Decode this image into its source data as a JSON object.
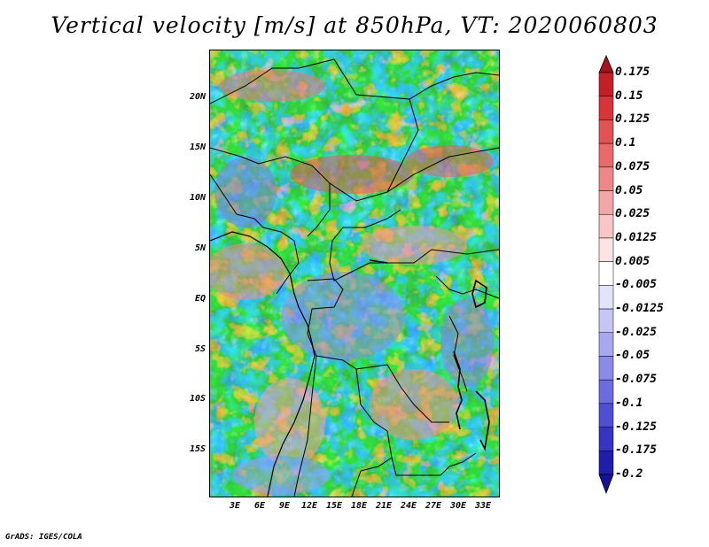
{
  "title": "Vertical velocity [m/s] at 850hPa, VT: 2020060803",
  "footer": "GrADS: IGES/COLA",
  "map": {
    "lat_range": [
      -20,
      24
    ],
    "lon_range": [
      0,
      35
    ],
    "lat_ticks": [
      {
        "value": 20,
        "label": "20N"
      },
      {
        "value": 15,
        "label": "15N"
      },
      {
        "value": 10,
        "label": "10N"
      },
      {
        "value": 5,
        "label": "5N"
      },
      {
        "value": 0,
        "label": "EQ"
      },
      {
        "value": -5,
        "label": "5S"
      },
      {
        "value": -10,
        "label": "10S"
      },
      {
        "value": -15,
        "label": "15S"
      }
    ],
    "lon_ticks": [
      {
        "value": 3,
        "label": "3E"
      },
      {
        "value": 6,
        "label": "6E"
      },
      {
        "value": 9,
        "label": "9E"
      },
      {
        "value": 12,
        "label": "12E"
      },
      {
        "value": 15,
        "label": "15E"
      },
      {
        "value": 18,
        "label": "18E"
      },
      {
        "value": 21,
        "label": "21E"
      },
      {
        "value": 24,
        "label": "24E"
      },
      {
        "value": 27,
        "label": "27E"
      },
      {
        "value": 30,
        "label": "30E"
      },
      {
        "value": 33,
        "label": "33E"
      }
    ]
  },
  "colorbar": {
    "levels": [
      "0.175",
      "0.15",
      "0.125",
      "0.1",
      "0.075",
      "0.05",
      "0.025",
      "0.0125",
      "0.005",
      "-0.005",
      "-0.0125",
      "-0.025",
      "-0.05",
      "-0.075",
      "-0.1",
      "-0.125",
      "-0.175",
      "-0.2"
    ],
    "colors": [
      "#a5141a",
      "#c21f26",
      "#d6363a",
      "#e15252",
      "#e86a6a",
      "#ee8888",
      "#f4a6a6",
      "#f9c6c6",
      "#fce3e3",
      "#ffffff",
      "#e3e3fb",
      "#c6c6f6",
      "#a8a8f0",
      "#8a8ae9",
      "#6c6ce0",
      "#4f4fd4",
      "#3535c2",
      "#1e1eaa",
      "#12129a"
    ]
  }
}
